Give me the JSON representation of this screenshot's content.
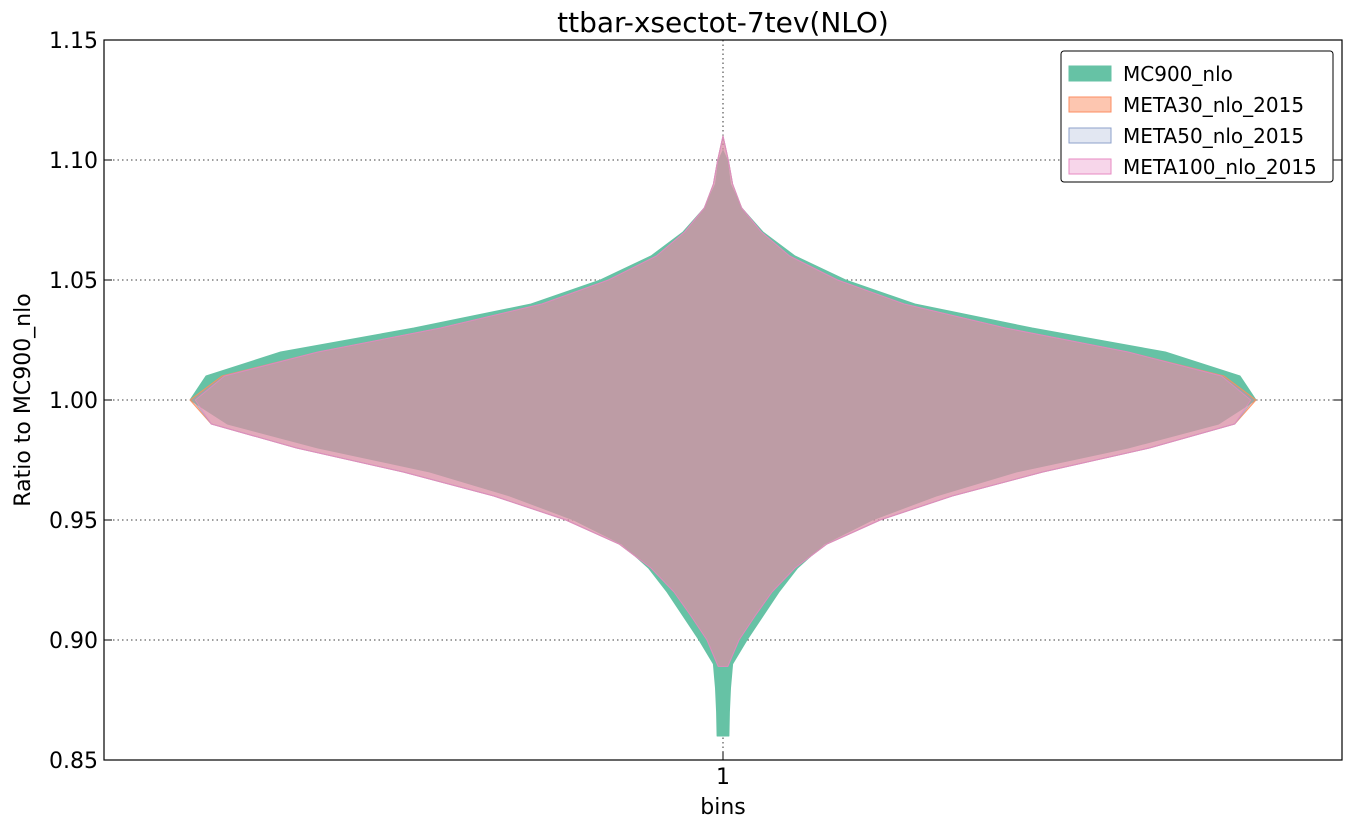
{
  "chart_data": {
    "type": "violin",
    "title": "ttbar-xsectot-7tev(NLO)",
    "xlabel": "bins",
    "ylabel": "Ratio to MC900_nlo",
    "categories": [
      "1"
    ],
    "ylim": [
      0.85,
      1.15
    ],
    "yticks": [
      "0.85",
      "0.90",
      "0.95",
      "1.00",
      "1.05",
      "1.10",
      "1.15"
    ],
    "grid": true,
    "legend_position": "top-right",
    "series": [
      {
        "name": "MC900_nlo",
        "fill": "#66c2a5",
        "edge": "#66c2a5",
        "opacity": 1.0,
        "ymin": 0.86,
        "ymax": 1.104,
        "profile": [
          [
            0.86,
            0.011
          ],
          [
            0.87,
            0.012
          ],
          [
            0.88,
            0.014
          ],
          [
            0.89,
            0.018
          ],
          [
            0.9,
            0.045
          ],
          [
            0.91,
            0.075
          ],
          [
            0.92,
            0.105
          ],
          [
            0.93,
            0.14
          ],
          [
            0.94,
            0.19
          ],
          [
            0.95,
            0.28
          ],
          [
            0.96,
            0.4
          ],
          [
            0.97,
            0.55
          ],
          [
            0.98,
            0.76
          ],
          [
            0.99,
            0.93
          ],
          [
            1.0,
            1.0
          ],
          [
            1.01,
            0.97
          ],
          [
            1.02,
            0.83
          ],
          [
            1.03,
            0.58
          ],
          [
            1.04,
            0.36
          ],
          [
            1.05,
            0.23
          ],
          [
            1.06,
            0.135
          ],
          [
            1.07,
            0.075
          ],
          [
            1.08,
            0.035
          ],
          [
            1.09,
            0.014
          ],
          [
            1.1,
            0.008
          ],
          [
            1.104,
            0.0
          ]
        ]
      },
      {
        "name": "META30_nlo_2015",
        "fill": "#fc8d62",
        "edge": "#fc8d62",
        "opacity": 0.5,
        "ymin": 0.889,
        "ymax": 1.11,
        "profile": [
          [
            0.889,
            0.009
          ],
          [
            0.9,
            0.03
          ],
          [
            0.91,
            0.06
          ],
          [
            0.92,
            0.092
          ],
          [
            0.93,
            0.135
          ],
          [
            0.94,
            0.195
          ],
          [
            0.95,
            0.295
          ],
          [
            0.96,
            0.43
          ],
          [
            0.97,
            0.6
          ],
          [
            0.98,
            0.8
          ],
          [
            0.99,
            0.96
          ],
          [
            1.0,
            1.0
          ],
          [
            1.01,
            0.94
          ],
          [
            1.02,
            0.76
          ],
          [
            1.03,
            0.53
          ],
          [
            1.04,
            0.34
          ],
          [
            1.05,
            0.215
          ],
          [
            1.06,
            0.125
          ],
          [
            1.07,
            0.072
          ],
          [
            1.08,
            0.035
          ],
          [
            1.09,
            0.018
          ],
          [
            1.1,
            0.01
          ],
          [
            1.11,
            0.0
          ]
        ]
      },
      {
        "name": "META50_nlo_2015",
        "fill": "#8da0cb",
        "edge": "#8da0cb",
        "opacity": 0.25,
        "ymin": 0.889,
        "ymax": 1.11,
        "profile": [
          [
            0.889,
            0.009
          ],
          [
            0.9,
            0.03
          ],
          [
            0.91,
            0.06
          ],
          [
            0.92,
            0.092
          ],
          [
            0.93,
            0.135
          ],
          [
            0.94,
            0.195
          ],
          [
            0.95,
            0.295
          ],
          [
            0.96,
            0.43
          ],
          [
            0.97,
            0.6
          ],
          [
            0.98,
            0.8
          ],
          [
            0.99,
            0.96
          ],
          [
            1.0,
            0.995
          ],
          [
            1.01,
            0.935
          ],
          [
            1.02,
            0.76
          ],
          [
            1.03,
            0.53
          ],
          [
            1.04,
            0.34
          ],
          [
            1.05,
            0.215
          ],
          [
            1.06,
            0.125
          ],
          [
            1.07,
            0.072
          ],
          [
            1.08,
            0.035
          ],
          [
            1.09,
            0.018
          ],
          [
            1.1,
            0.01
          ],
          [
            1.11,
            0.0
          ]
        ]
      },
      {
        "name": "META100_nlo_2015",
        "fill": "#e78ac3",
        "edge": "#e78ac3",
        "opacity": 0.35,
        "ymin": 0.889,
        "ymax": 1.11,
        "profile": [
          [
            0.889,
            0.009
          ],
          [
            0.9,
            0.03
          ],
          [
            0.91,
            0.06
          ],
          [
            0.92,
            0.092
          ],
          [
            0.93,
            0.135
          ],
          [
            0.94,
            0.195
          ],
          [
            0.95,
            0.295
          ],
          [
            0.96,
            0.43
          ],
          [
            0.97,
            0.6
          ],
          [
            0.98,
            0.8
          ],
          [
            0.99,
            0.96
          ],
          [
            1.0,
            0.99
          ],
          [
            1.01,
            0.935
          ],
          [
            1.02,
            0.76
          ],
          [
            1.03,
            0.53
          ],
          [
            1.04,
            0.34
          ],
          [
            1.05,
            0.215
          ],
          [
            1.06,
            0.125
          ],
          [
            1.07,
            0.072
          ],
          [
            1.08,
            0.035
          ],
          [
            1.09,
            0.018
          ],
          [
            1.1,
            0.01
          ],
          [
            1.11,
            0.0
          ]
        ]
      }
    ]
  }
}
